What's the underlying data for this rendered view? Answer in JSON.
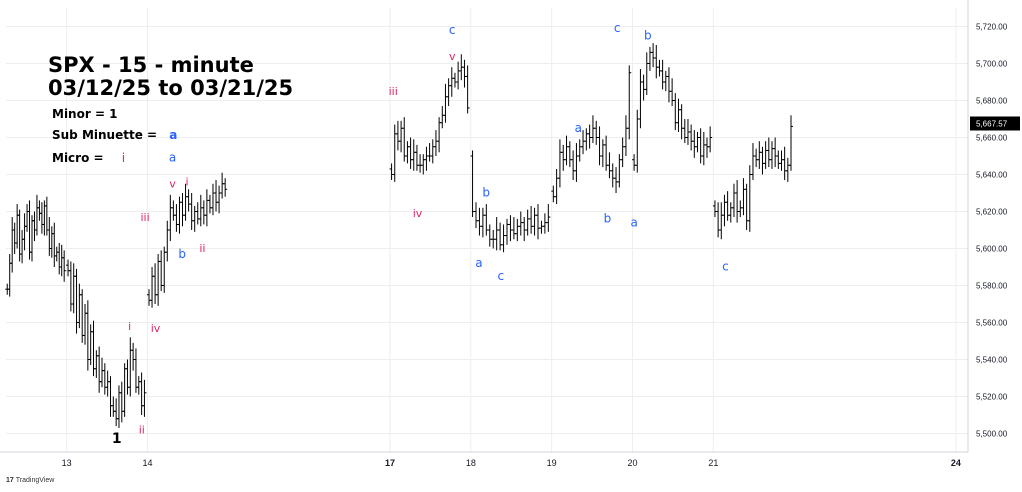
{
  "title_line1": "SPX - 15 - minute",
  "title_line2": "03/12/25 to 03/21/25",
  "legend": {
    "minor": "Minor = 1",
    "sub_minuette": "Sub Minuette =",
    "sub_minuette_mark": "a",
    "micro": "Micro =",
    "micro_mark": "i"
  },
  "branding": "TradingView",
  "colors": {
    "pink": "#e0245e",
    "blue": "#2962ff",
    "black": "#000000",
    "bars": "#000000",
    "grid": "#eeeeee",
    "price_tag": "#000000"
  },
  "chart_data": {
    "type": "ohlc",
    "price_axis": {
      "min": 5490,
      "max": 5730,
      "ticks": [
        "5,500.00",
        "5,520.00",
        "5,540.00",
        "5,560.00",
        "5,580.00",
        "5,600.00",
        "5,620.00",
        "5,640.00",
        "5,660.00",
        "5,680.00",
        "5,700.00",
        "5,720.00"
      ],
      "tick_values": [
        5500,
        5520,
        5540,
        5560,
        5580,
        5600,
        5620,
        5640,
        5660,
        5680,
        5700,
        5720
      ]
    },
    "current_price": "5,667.57",
    "current_price_value": 5667.57,
    "time_axis": {
      "labels": [
        "13",
        "14",
        "17",
        "18",
        "19",
        "20",
        "21",
        "24"
      ],
      "bold": [
        false,
        false,
        true,
        false,
        false,
        false,
        false,
        true
      ],
      "start": 12.25,
      "end": 24.15
    },
    "days": [
      {
        "day": 12,
        "t0": 12.25,
        "closes": [
          5578,
          5592,
          5610,
          5603,
          5618,
          5597,
          5605,
          5612,
          5620,
          5598,
          5615,
          5610,
          5622,
          5619,
          5613,
          5623,
          5610,
          5600,
          5608,
          5596,
          5598,
          5590,
          5595,
          5588
        ]
      },
      {
        "day": 13,
        "t0": 13.0,
        "closes": [
          5588,
          5570,
          5585,
          5560,
          5575,
          5553,
          5565,
          5540,
          5555,
          5535,
          5542,
          5528,
          5534,
          5525,
          5528,
          5515,
          5512,
          5508,
          5522,
          5512,
          5535,
          5525,
          5545,
          5540,
          5525,
          5528,
          5515,
          5522
        ]
      },
      {
        "day": 14,
        "t0": 14.0,
        "closes": [
          5572,
          5585,
          5575,
          5593,
          5580,
          5598,
          5610,
          5622,
          5618,
          5613,
          5625,
          5618,
          5628,
          5624,
          5615,
          5620,
          5616,
          5622,
          5618,
          5626,
          5622,
          5630,
          5625,
          5630,
          5635,
          5632
        ]
      },
      {
        "day": 17,
        "t0": 17.0,
        "closes": [
          5640,
          5662,
          5658,
          5665,
          5650,
          5655,
          5648,
          5652,
          5645,
          5645,
          5648,
          5650,
          5650,
          5655,
          5658,
          5668,
          5672,
          5682,
          5688,
          5692,
          5690,
          5696,
          5698,
          5693,
          5676
        ]
      },
      {
        "day": 18,
        "t0": 18.0,
        "closes": [
          5620,
          5615,
          5612,
          5618,
          5610,
          5605,
          5605,
          5610,
          5602,
          5607,
          5613,
          5610,
          5608,
          5612,
          5614,
          5610,
          5616,
          5612,
          5618,
          5611,
          5612,
          5614,
          5617
        ]
      },
      {
        "day": 19,
        "t0": 19.0,
        "closes": [
          5628,
          5638,
          5652,
          5648,
          5655,
          5648,
          5642,
          5650,
          5655,
          5658,
          5662,
          5660,
          5665,
          5660,
          5650,
          5656,
          5645,
          5642,
          5638,
          5636,
          5648,
          5655,
          5665,
          5695
        ]
      },
      {
        "day": 20,
        "t0": 20.0,
        "closes": [
          5645,
          5670,
          5690,
          5686,
          5700,
          5706,
          5703,
          5698,
          5696,
          5690,
          5693,
          5685,
          5680,
          5668,
          5675,
          5665,
          5660,
          5663,
          5658,
          5655,
          5660,
          5650,
          5656,
          5655,
          5660
        ]
      },
      {
        "day": 21,
        "t0": 21.0,
        "closes": [
          5620,
          5610,
          5618,
          5625,
          5618,
          5622,
          5630,
          5620,
          5622,
          5632,
          5615,
          5640,
          5650,
          5648,
          5652,
          5646,
          5653,
          5648,
          5654,
          5650,
          5646,
          5648,
          5642,
          5645,
          5666
        ]
      }
    ],
    "annotations": [
      {
        "text": "1",
        "t": 13.62,
        "price": 5495,
        "color": "black",
        "size": 14
      },
      {
        "text": "i",
        "t": 13.78,
        "price": 5556,
        "color": "pink",
        "size": 11
      },
      {
        "text": "ii",
        "t": 13.93,
        "price": 5500,
        "color": "pink",
        "size": 11
      },
      {
        "text": "iii",
        "t": 13.97,
        "price": 5615,
        "color": "pink",
        "size": 11
      },
      {
        "text": "iv",
        "t": 14.1,
        "price": 5555,
        "color": "pink",
        "size": 11
      },
      {
        "text": "a",
        "t": 14.31,
        "price": 5647,
        "color": "blue",
        "size": 12
      },
      {
        "text": "v",
        "t": 14.31,
        "price": 5633,
        "color": "pink",
        "size": 11
      },
      {
        "text": "b",
        "t": 14.43,
        "price": 5595,
        "color": "blue",
        "size": 12
      },
      {
        "text": "i",
        "t": 14.49,
        "price": 5634,
        "color": "pink",
        "size": 11
      },
      {
        "text": "ii",
        "t": 14.68,
        "price": 5598,
        "color": "pink",
        "size": 11
      },
      {
        "text": "iii",
        "t": 17.04,
        "price": 5683,
        "color": "pink",
        "size": 11
      },
      {
        "text": "iv",
        "t": 17.34,
        "price": 5617,
        "color": "pink",
        "size": 11
      },
      {
        "text": "c",
        "t": 17.77,
        "price": 5716,
        "color": "blue",
        "size": 12
      },
      {
        "text": "v",
        "t": 17.77,
        "price": 5702,
        "color": "pink",
        "size": 11
      },
      {
        "text": "b",
        "t": 18.19,
        "price": 5628,
        "color": "blue",
        "size": 12
      },
      {
        "text": "a",
        "t": 18.1,
        "price": 5590,
        "color": "blue",
        "size": 12
      },
      {
        "text": "c",
        "t": 18.37,
        "price": 5583,
        "color": "blue",
        "size": 12
      },
      {
        "text": "a",
        "t": 19.33,
        "price": 5663,
        "color": "blue",
        "size": 12
      },
      {
        "text": "b",
        "t": 19.69,
        "price": 5614,
        "color": "blue",
        "size": 12
      },
      {
        "text": "c",
        "t": 19.81,
        "price": 5717,
        "color": "blue",
        "size": 12
      },
      {
        "text": "a",
        "t": 20.02,
        "price": 5612,
        "color": "blue",
        "size": 12
      },
      {
        "text": "b",
        "t": 20.19,
        "price": 5713,
        "color": "blue",
        "size": 12
      },
      {
        "text": "c",
        "t": 21.15,
        "price": 5588,
        "color": "blue",
        "size": 12
      }
    ]
  }
}
